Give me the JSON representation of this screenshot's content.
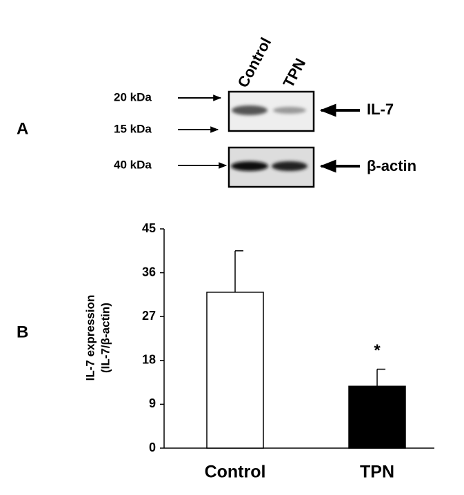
{
  "panel_a": {
    "label": "A",
    "lanes": [
      "Control",
      "TPN"
    ],
    "markers": [
      "20 kDa",
      "15 kDa",
      "40 kDa"
    ],
    "bands": [
      "IL-7",
      "β-actin"
    ]
  },
  "chart_data": {
    "type": "bar",
    "panel_label": "B",
    "ylabel": [
      "IL-7 expression",
      "(IL-7/β-actin)"
    ],
    "categories": [
      "Control",
      "TPN"
    ],
    "values": [
      32,
      12.7
    ],
    "errors": [
      8.5,
      3.5
    ],
    "colors": [
      "#ffffff",
      "#000000"
    ],
    "annotations": [
      "",
      "*"
    ],
    "ylim": [
      0,
      45
    ],
    "yticks": [
      0,
      9,
      18,
      27,
      36,
      45
    ]
  }
}
